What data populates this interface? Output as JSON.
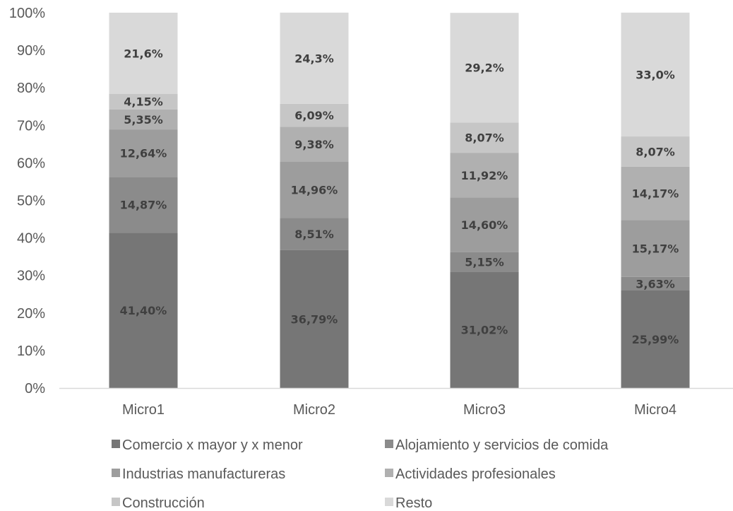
{
  "chart_data": {
    "type": "bar",
    "stacked": true,
    "categories": [
      "Micro1",
      "Micro2",
      "Micro3",
      "Micro4"
    ],
    "ylim": [
      0,
      100
    ],
    "yticks": [
      "0%",
      "10%",
      "20%",
      "30%",
      "40%",
      "50%",
      "60%",
      "70%",
      "80%",
      "90%",
      "100%"
    ],
    "legend_position": "bottom",
    "series": [
      {
        "name": "Comercio x mayor y x menor",
        "color": "#767676",
        "values": [
          41.4,
          36.79,
          31.02,
          25.99
        ],
        "labels": [
          "41,40%",
          "36,79%",
          "31,02%",
          "25,99%"
        ]
      },
      {
        "name": "Alojamiento y servicios de comida",
        "color": "#8b8b8b",
        "values": [
          14.87,
          8.51,
          5.15,
          3.63
        ],
        "labels": [
          "14,87%",
          "8,51%",
          "5,15%",
          "3,63%"
        ]
      },
      {
        "name": "Industrias manufactureras",
        "color": "#9d9d9d",
        "values": [
          12.64,
          14.96,
          14.6,
          15.17
        ],
        "labels": [
          "12,64%",
          "14,96%",
          "14,60%",
          "15,17%"
        ]
      },
      {
        "name": "Actividades profesionales",
        "color": "#b0b0b0",
        "values": [
          5.35,
          9.38,
          11.92,
          14.17
        ],
        "labels": [
          "5,35%",
          "9,38%",
          "11,92%",
          "14,17%"
        ]
      },
      {
        "name": "Construcción",
        "color": "#c6c6c6",
        "values": [
          4.15,
          6.09,
          8.07,
          8.07
        ],
        "labels": [
          "4,15%",
          "6,09%",
          "8,07%",
          "8,07%"
        ]
      },
      {
        "name": "Resto",
        "color": "#d9d9d9",
        "values": [
          21.6,
          24.3,
          29.2,
          33.0
        ],
        "labels": [
          "21,6%",
          "24,3%",
          "29,2%",
          "33,0%"
        ]
      }
    ]
  }
}
